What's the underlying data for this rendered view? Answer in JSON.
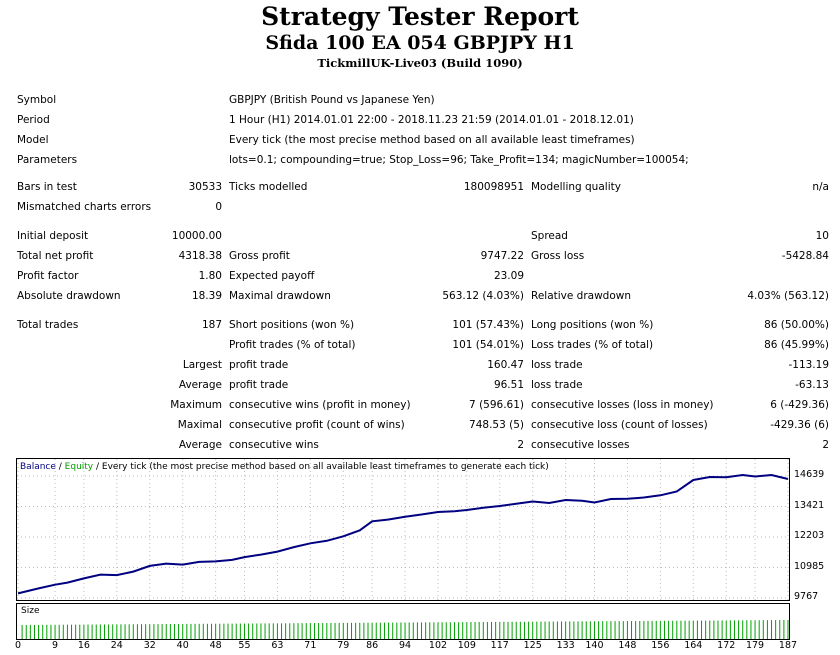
{
  "report": {
    "title": "Strategy Tester Report",
    "subtitle": "Sfida 100 EA 054 GBPJPY H1",
    "server": "TickmillUK-Live03 (Build 1090)"
  },
  "info": {
    "symbol_label": "Symbol",
    "symbol_value": "GBPJPY (British Pound vs Japanese Yen)",
    "period_label": "Period",
    "period_value": "1 Hour (H1) 2014.01.01 22:00 - 2018.11.23 21:59 (2014.01.01 - 2018.12.01)",
    "model_label": "Model",
    "model_value": "Every tick (the most precise method based on all available least timeframes)",
    "params_label": "Parameters",
    "params_value": "lots=0.1; compounding=true; Stop_Loss=96; Take_Profit=134; magicNumber=100054;"
  },
  "stats": {
    "bars_label": "Bars in test",
    "bars_value": "30533",
    "ticks_label": "Ticks modelled",
    "ticks_value": "180098951",
    "quality_label": "Modelling quality",
    "quality_value": "n/a",
    "mismatch_label": "Mismatched charts errors",
    "mismatch_value": "0",
    "deposit_label": "Initial deposit",
    "deposit_value": "10000.00",
    "spread_label": "Spread",
    "spread_value": "10",
    "netprofit_label": "Total net profit",
    "netprofit_value": "4318.38",
    "grossprofit_label": "Gross profit",
    "grossprofit_value": "9747.22",
    "grossloss_label": "Gross loss",
    "grossloss_value": "-5428.84",
    "pf_label": "Profit factor",
    "pf_value": "1.80",
    "payoff_label": "Expected payoff",
    "payoff_value": "23.09",
    "absdd_label": "Absolute drawdown",
    "absdd_value": "18.39",
    "maxdd_label": "Maximal drawdown",
    "maxdd_value": "563.12 (4.03%)",
    "reldd_label": "Relative drawdown",
    "reldd_value": "4.03% (563.12)",
    "trades_label": "Total trades",
    "trades_value": "187",
    "short_label": "Short positions (won %)",
    "short_value": "101 (57.43%)",
    "long_label": "Long positions (won %)",
    "long_value": "86 (50.00%)",
    "ptrades_label": "Profit trades (% of total)",
    "ptrades_value": "101 (54.01%)",
    "ltrades_label": "Loss trades (% of total)",
    "ltrades_value": "86 (45.99%)",
    "largest_label": "Largest",
    "largest_p_label": "profit trade",
    "largest_p_value": "160.47",
    "largest_l_label": "loss trade",
    "largest_l_value": "-113.19",
    "average_label": "Average",
    "average_p_label": "profit trade",
    "average_p_value": "96.51",
    "average_l_label": "loss trade",
    "average_l_value": "-63.13",
    "maximum_label": "Maximum",
    "maxwins_label": "consecutive wins (profit in money)",
    "maxwins_value": "7 (596.61)",
    "maxlosses_label": "consecutive losses (loss in money)",
    "maxlosses_value": "6 (-429.36)",
    "maximal_label": "Maximal",
    "maxprofit_label": "consecutive profit (count of wins)",
    "maxprofit_value": "748.53 (5)",
    "maxloss_label": "consecutive loss (count of losses)",
    "maxloss_value": "-429.36 (6)",
    "avgcons_label": "Average",
    "avgwins_label": "consecutive wins",
    "avgwins_value": "2",
    "avglosses_label": "consecutive losses",
    "avglosses_value": "2"
  },
  "chart_data": {
    "type": "line",
    "legend_balance": "Balance",
    "legend_sep": " / ",
    "legend_equity": "Equity",
    "legend_rest": " / Every tick (the most precise method based on all available least timeframes to generate each tick)",
    "size_label": "Size",
    "y_ticks": [
      "14639",
      "13421",
      "12203",
      "10985",
      "9767"
    ],
    "y_tick_values": [
      14639,
      13421,
      12203,
      10985,
      9767
    ],
    "x_ticks": [
      "0",
      "9",
      "16",
      "24",
      "32",
      "40",
      "48",
      "55",
      "63",
      "71",
      "79",
      "86",
      "94",
      "102",
      "109",
      "117",
      "125",
      "133",
      "140",
      "148",
      "156",
      "164",
      "172",
      "179",
      "187"
    ],
    "x_tick_values": [
      0,
      9,
      16,
      24,
      32,
      40,
      48,
      55,
      63,
      71,
      79,
      86,
      94,
      102,
      109,
      117,
      125,
      133,
      140,
      148,
      156,
      164,
      172,
      179,
      187
    ],
    "ylim": [
      9767,
      14639
    ],
    "xlim": [
      0,
      187
    ],
    "series": [
      {
        "name": "Balance",
        "color": "#000080",
        "x": [
          0,
          5,
          9,
          12,
          16,
          20,
          24,
          28,
          32,
          36,
          40,
          44,
          48,
          52,
          55,
          59,
          63,
          67,
          71,
          75,
          79,
          83,
          86,
          90,
          94,
          98,
          102,
          106,
          109,
          113,
          117,
          121,
          125,
          129,
          133,
          137,
          140,
          144,
          148,
          152,
          156,
          160,
          164,
          168,
          172,
          176,
          179,
          183,
          187
        ],
        "y": [
          9950,
          10150,
          10300,
          10380,
          10550,
          10700,
          10680,
          10820,
          11050,
          11140,
          11100,
          11210,
          11230,
          11290,
          11400,
          11500,
          11620,
          11800,
          11950,
          12050,
          12230,
          12470,
          12830,
          12900,
          13010,
          13100,
          13200,
          13230,
          13280,
          13370,
          13440,
          13530,
          13620,
          13560,
          13680,
          13650,
          13580,
          13720,
          13730,
          13780,
          13870,
          14020,
          14480,
          14600,
          14590,
          14680,
          14620,
          14680,
          14520
        ]
      }
    ],
    "size_bar_value": 0.1
  }
}
